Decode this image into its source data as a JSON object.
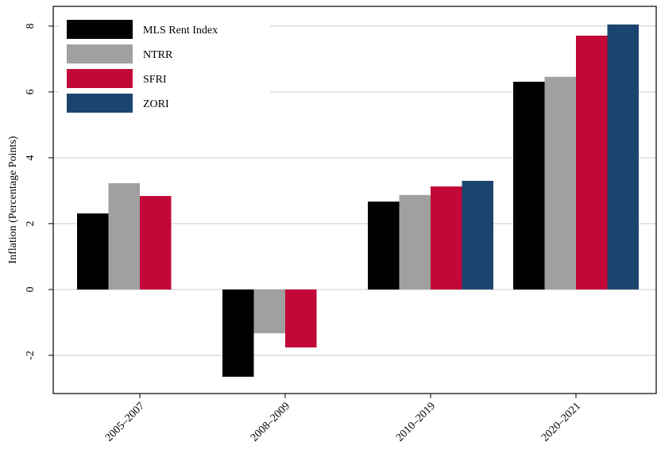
{
  "chart_data": {
    "type": "bar",
    "y_label": "Inflation (Percentage Points)",
    "categories": [
      "2005–2007",
      "2008–2009",
      "2010–2019",
      "2020–2021"
    ],
    "series": [
      {
        "name": "MLS Rent Index",
        "color": "#000000",
        "values": [
          2.31,
          -2.65,
          2.67,
          6.31
        ]
      },
      {
        "name": "NTRR",
        "color": "#a0a0a0",
        "values": [
          3.23,
          -1.33,
          2.87,
          6.46
        ]
      },
      {
        "name": "SFRI",
        "color": "#c20838",
        "values": [
          2.84,
          -1.76,
          3.13,
          7.71
        ]
      },
      {
        "name": "ZORI",
        "color": "#1b4570",
        "values": [
          null,
          null,
          3.3,
          8.05
        ]
      }
    ],
    "ylim": [
      -3.16,
      8.6
    ],
    "yticks": [
      -2,
      0,
      2,
      4,
      6,
      8
    ],
    "grid": true,
    "legend": "top-left"
  }
}
